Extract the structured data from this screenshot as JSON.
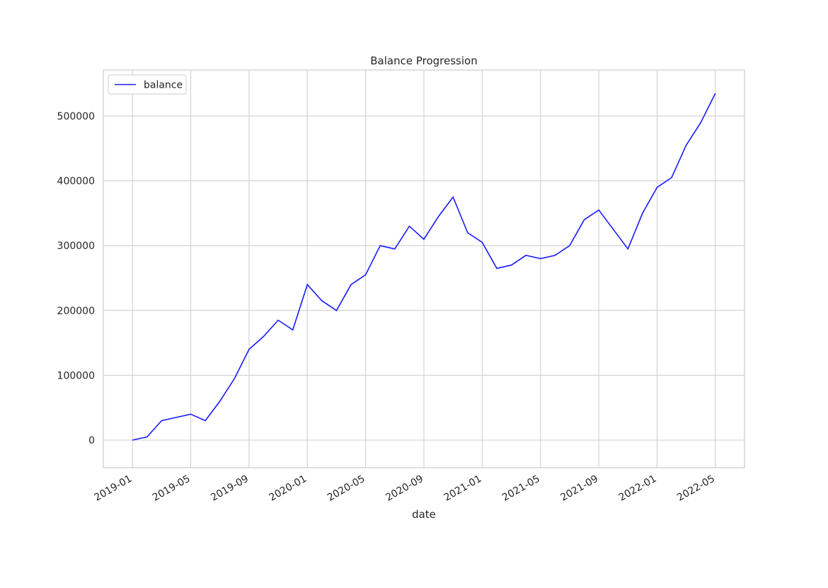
{
  "chart_data": {
    "type": "line",
    "title": "Balance Progression",
    "x_label": "date",
    "x": [
      "2019-01",
      "2019-02",
      "2019-03",
      "2019-04",
      "2019-05",
      "2019-06",
      "2019-07",
      "2019-08",
      "2019-09",
      "2019-10",
      "2019-11",
      "2019-12",
      "2020-01",
      "2020-02",
      "2020-03",
      "2020-04",
      "2020-05",
      "2020-06",
      "2020-07",
      "2020-08",
      "2020-09",
      "2020-10",
      "2020-11",
      "2020-12",
      "2021-01",
      "2021-02",
      "2021-03",
      "2021-04",
      "2021-05",
      "2021-06",
      "2021-07",
      "2021-08",
      "2021-09",
      "2021-10",
      "2021-11",
      "2021-12",
      "2022-01",
      "2022-02",
      "2022-03",
      "2022-04",
      "2022-05"
    ],
    "series": [
      {
        "name": "balance",
        "color": "#1a1aff",
        "values": [
          0,
          5000,
          30000,
          35000,
          40000,
          30000,
          60000,
          95000,
          140000,
          160000,
          185000,
          170000,
          240000,
          215000,
          200000,
          240000,
          255000,
          300000,
          295000,
          330000,
          310000,
          345000,
          375000,
          320000,
          305000,
          265000,
          270000,
          285000,
          280000,
          285000,
          300000,
          340000,
          355000,
          325000,
          295000,
          350000,
          390000,
          405000,
          455000,
          490000,
          535000
        ]
      }
    ],
    "xlim": [
      "2018-11",
      "2022-07"
    ],
    "xticks": [
      "2019-01",
      "2019-05",
      "2019-09",
      "2020-01",
      "2020-05",
      "2020-09",
      "2021-01",
      "2021-05",
      "2021-09",
      "2022-01",
      "2022-05"
    ],
    "ylim": [
      -42600,
      571000
    ],
    "yticks": [
      0,
      100000,
      200000,
      300000,
      400000,
      500000
    ],
    "grid": true,
    "legend": "upper-left"
  }
}
